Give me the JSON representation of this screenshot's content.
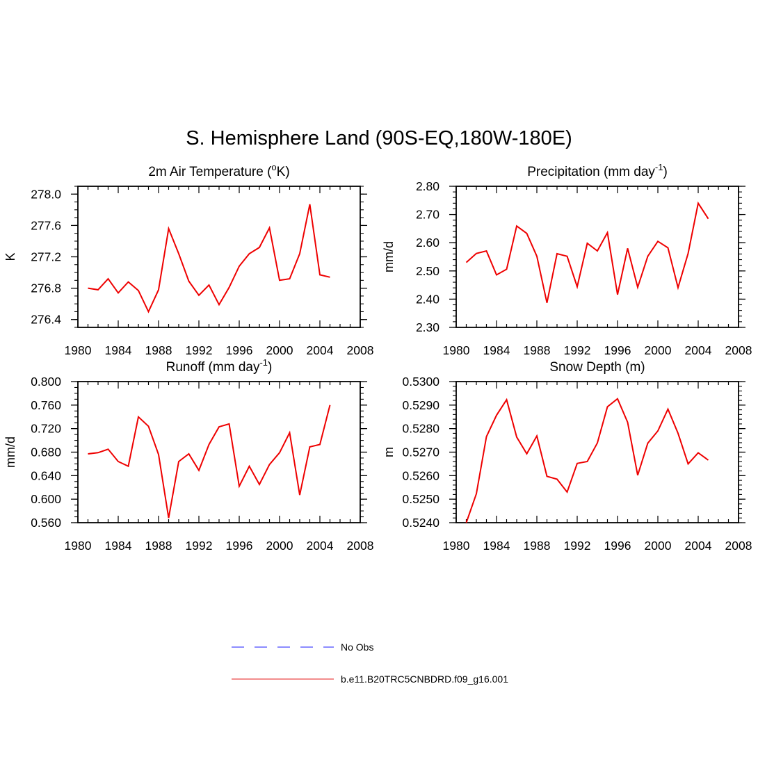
{
  "title": "S. Hemisphere Land (90S-EQ,180W-180E)",
  "colors": {
    "model": "#ee0000",
    "obs": "#6666ff",
    "axis": "#000000"
  },
  "legend": [
    {
      "label": "No Obs",
      "style": "dashed",
      "color": "#6666ff"
    },
    {
      "label": "b.e11.B20TRC5CNBDRD.f09_g16.001",
      "style": "solid",
      "color": "#ee6666"
    }
  ],
  "chart_data": [
    {
      "id": "temp",
      "type": "line",
      "title": "2m Air Temperature (",
      "title_sup": "o",
      "title_suffix": "K)",
      "ylabel": "K",
      "xlim": [
        1980,
        2008
      ],
      "xticks": [
        "1980",
        "1984",
        "1988",
        "1992",
        "1996",
        "2000",
        "2004",
        "2008"
      ],
      "ylim": [
        276.3,
        278.1
      ],
      "yticks": [
        276.4,
        276.8,
        277.2,
        277.6,
        278.0
      ],
      "ytick_labels": [
        "276.4",
        "276.8",
        "277.2",
        "277.6",
        "278.0"
      ],
      "yminor": 0.1,
      "x": [
        1981,
        1982,
        1983,
        1984,
        1985,
        1986,
        1987,
        1988,
        1989,
        1990,
        1991,
        1992,
        1993,
        1994,
        1995,
        1996,
        1997,
        1998,
        1999,
        2000,
        2001,
        2002,
        2003,
        2004,
        2005
      ],
      "series": [
        {
          "name": "b.e11.B20TRC5CNBDRD.f09_g16.001",
          "values": [
            276.8,
            276.78,
            276.92,
            276.74,
            276.88,
            276.77,
            276.5,
            276.78,
            277.56,
            277.24,
            276.89,
            276.71,
            276.84,
            276.59,
            276.81,
            277.08,
            277.24,
            277.32,
            277.57,
            276.9,
            276.92,
            277.24,
            277.87,
            276.97,
            276.94
          ]
        }
      ]
    },
    {
      "id": "precip",
      "type": "line",
      "title": "Precipitation (mm day",
      "title_sup": "-1",
      "title_suffix": ")",
      "ylabel": "mm/d",
      "xlim": [
        1980,
        2008
      ],
      "xticks": [
        "1980",
        "1984",
        "1988",
        "1992",
        "1996",
        "2000",
        "2004",
        "2008"
      ],
      "ylim": [
        2.3,
        2.8
      ],
      "yticks": [
        2.3,
        2.4,
        2.5,
        2.6,
        2.7,
        2.8
      ],
      "ytick_labels": [
        "2.30",
        "2.40",
        "2.50",
        "2.60",
        "2.70",
        "2.80"
      ],
      "yminor": 0.02,
      "x": [
        1981,
        1982,
        1983,
        1984,
        1985,
        1986,
        1987,
        1988,
        1989,
        1990,
        1991,
        1992,
        1993,
        1994,
        1995,
        1996,
        1997,
        1998,
        1999,
        2000,
        2001,
        2002,
        2003,
        2004,
        2005
      ],
      "series": [
        {
          "name": "b.e11.B20TRC5CNBDRD.f09_g16.001",
          "values": [
            2.53,
            2.562,
            2.571,
            2.486,
            2.506,
            2.659,
            2.633,
            2.552,
            2.387,
            2.561,
            2.552,
            2.444,
            2.598,
            2.571,
            2.636,
            2.416,
            2.58,
            2.442,
            2.552,
            2.605,
            2.582,
            2.441,
            2.562,
            2.74,
            2.685
          ]
        }
      ]
    },
    {
      "id": "runoff",
      "type": "line",
      "title": "Runoff (mm day",
      "title_sup": "-1",
      "title_suffix": ")",
      "ylabel": "mm/d",
      "xlim": [
        1980,
        2008
      ],
      "xticks": [
        "1980",
        "1984",
        "1988",
        "1992",
        "1996",
        "2000",
        "2004",
        "2008"
      ],
      "ylim": [
        0.56,
        0.8
      ],
      "yticks": [
        0.56,
        0.6,
        0.64,
        0.68,
        0.72,
        0.76,
        0.8
      ],
      "ytick_labels": [
        "0.560",
        "0.600",
        "0.640",
        "0.680",
        "0.720",
        "0.760",
        "0.800"
      ],
      "yminor": 0.01,
      "x": [
        1981,
        1982,
        1983,
        1984,
        1985,
        1986,
        1987,
        1988,
        1989,
        1990,
        1991,
        1992,
        1993,
        1994,
        1995,
        1996,
        1997,
        1998,
        1999,
        2000,
        2001,
        2002,
        2003,
        2004,
        2005
      ],
      "series": [
        {
          "name": "b.e11.B20TRC5CNBDRD.f09_g16.001",
          "values": [
            0.677,
            0.679,
            0.685,
            0.664,
            0.656,
            0.74,
            0.724,
            0.676,
            0.568,
            0.664,
            0.677,
            0.649,
            0.693,
            0.723,
            0.728,
            0.622,
            0.656,
            0.625,
            0.659,
            0.679,
            0.713,
            0.607,
            0.689,
            0.693,
            0.76
          ]
        }
      ]
    },
    {
      "id": "snow",
      "type": "line",
      "title": "Snow Depth (m)",
      "title_sup": "",
      "title_suffix": "",
      "ylabel": "m",
      "xlim": [
        1980,
        2008
      ],
      "xticks": [
        "1980",
        "1984",
        "1988",
        "1992",
        "1996",
        "2000",
        "2004",
        "2008"
      ],
      "ylim": [
        0.524,
        0.53
      ],
      "yticks": [
        0.524,
        0.525,
        0.526,
        0.527,
        0.528,
        0.529,
        0.53
      ],
      "ytick_labels": [
        "0.5240",
        "0.5250",
        "0.5260",
        "0.5270",
        "0.5280",
        "0.5290",
        "0.5300"
      ],
      "yminor": 0.0002,
      "x": [
        1981,
        1982,
        1983,
        1984,
        1985,
        1986,
        1987,
        1988,
        1989,
        1990,
        1991,
        1992,
        1993,
        1994,
        1995,
        1996,
        1997,
        1998,
        1999,
        2000,
        2001,
        2002,
        2003,
        2004,
        2005
      ],
      "series": [
        {
          "name": "b.e11.B20TRC5CNBDRD.f09_g16.001",
          "values": [
            0.524,
            0.52523,
            0.52766,
            0.52857,
            0.52923,
            0.52764,
            0.52693,
            0.52769,
            0.52597,
            0.52585,
            0.5253,
            0.52652,
            0.5266,
            0.52739,
            0.52893,
            0.52927,
            0.52827,
            0.52602,
            0.52738,
            0.5279,
            0.52883,
            0.5278,
            0.5265,
            0.52697,
            0.52666
          ]
        }
      ]
    }
  ]
}
